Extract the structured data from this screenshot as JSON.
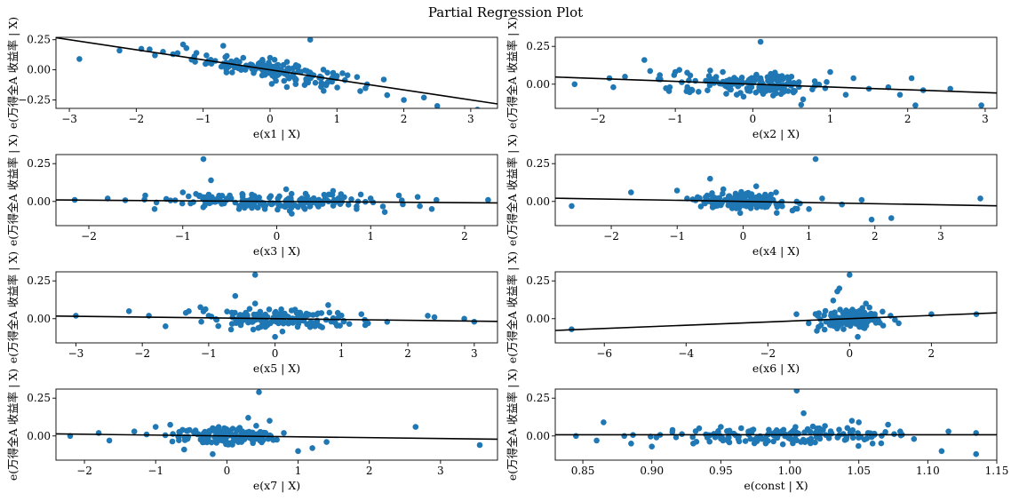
{
  "title": "Partial Regression Plot",
  "chart_data": [
    {
      "type": "scatter",
      "xlabel": "e(x1 | X)",
      "ylabel": "e(万得全A 收益率 | X)",
      "xlim": [
        -3.2,
        3.4
      ],
      "ylim": [
        -0.32,
        0.27
      ],
      "xticks": [
        -3,
        -2,
        -1,
        0,
        1,
        2,
        3
      ],
      "xtick_labels": [
        "−3",
        "−2",
        "−1",
        "0",
        "1",
        "2",
        "3"
      ],
      "yticks": [
        -0.25,
        0,
        0.25
      ],
      "ytick_labels": [
        "−0.25",
        "0.00",
        "0.25"
      ],
      "line": {
        "slope": -0.0833,
        "intercept": 0
      },
      "points": [
        [
          -2.85,
          0.09
        ],
        [
          -2.25,
          0.16
        ],
        [
          -1.8,
          0.17
        ],
        [
          -1.72,
          0.12
        ],
        [
          -1.6,
          0.15
        ],
        [
          -1.45,
          0.13
        ],
        [
          -1.3,
          0.21
        ],
        [
          -1.25,
          0.18
        ],
        [
          -1.1,
          0.14
        ],
        [
          -0.95,
          0.12
        ],
        [
          -0.7,
          0.2
        ],
        [
          -0.6,
          0.05
        ],
        [
          -0.5,
          0.08
        ],
        [
          -0.4,
          0.1
        ],
        [
          -0.3,
          0.03
        ],
        [
          0,
          0.1
        ],
        [
          0.2,
          0.04
        ],
        [
          0.35,
          -0.03
        ],
        [
          0.6,
          0.25
        ],
        [
          0.55,
          -0.08
        ],
        [
          0.8,
          -0.12
        ],
        [
          1,
          -0.05
        ],
        [
          1.3,
          -0.06
        ],
        [
          1.45,
          -0.12
        ],
        [
          1.7,
          -0.08
        ],
        [
          1.75,
          -0.21
        ],
        [
          2,
          -0.25
        ],
        [
          2.3,
          -0.23
        ],
        [
          2.5,
          -0.3
        ],
        [
          3.1,
          -0.33
        ]
      ],
      "n_cloud": 160,
      "cloud_center": [
        0,
        0
      ],
      "cloud_spread": [
        0.55,
        0.04
      ]
    },
    {
      "type": "scatter",
      "xlabel": "e(x2 | X)",
      "ylabel": "e(万得全A 收益率 | X)",
      "xlim": [
        -2.55,
        3.15
      ],
      "ylim": [
        -0.16,
        0.31
      ],
      "xticks": [
        -2,
        -1,
        0,
        1,
        2,
        3
      ],
      "xtick_labels": [
        "−2",
        "−1",
        "0",
        "1",
        "2",
        "3"
      ],
      "yticks": [
        0,
        0.25
      ],
      "ytick_labels": [
        "0.00",
        "0.25"
      ],
      "line": {
        "slope": -0.0185,
        "intercept": 0
      },
      "points": [
        [
          -2.3,
          0
        ],
        [
          -1.85,
          0.04
        ],
        [
          -1.8,
          -0.02
        ],
        [
          -1.65,
          0.05
        ],
        [
          -1.4,
          0.16
        ],
        [
          -1.2,
          0.06
        ],
        [
          -1,
          0.08
        ],
        [
          -0.7,
          -0.05
        ],
        [
          -0.55,
          0.09
        ],
        [
          -0.3,
          0.03
        ],
        [
          0.1,
          0.28
        ],
        [
          0.3,
          -0.06
        ],
        [
          0.5,
          0.05
        ],
        [
          0.65,
          -0.1
        ],
        [
          0.8,
          0.02
        ],
        [
          1,
          0.08
        ],
        [
          1.2,
          -0.07
        ],
        [
          1.3,
          0.04
        ],
        [
          1.5,
          -0.03
        ],
        [
          1.75,
          -0.02
        ],
        [
          1.9,
          -0.07
        ],
        [
          2.05,
          0.04
        ],
        [
          2.1,
          -0.14
        ],
        [
          2.2,
          -0.04
        ],
        [
          2.55,
          -0.03
        ],
        [
          2.95,
          -0.14
        ]
      ],
      "n_cloud": 150,
      "cloud_center": [
        0,
        0
      ],
      "cloud_spread": [
        0.5,
        0.035
      ]
    },
    {
      "type": "scatter",
      "xlabel": "e(x3 | X)",
      "ylabel": "e(万得全A 收益率 | X)",
      "xlim": [
        -2.35,
        2.35
      ],
      "ylim": [
        -0.16,
        0.31
      ],
      "xticks": [
        -2,
        -1,
        0,
        1,
        2
      ],
      "xtick_labels": [
        "−2",
        "−1",
        "0",
        "1",
        "2"
      ],
      "yticks": [
        0,
        0.25
      ],
      "ytick_labels": [
        "0.00",
        "0.25"
      ],
      "line": {
        "slope": -0.0042,
        "intercept": 0
      },
      "points": [
        [
          -2.15,
          0.01
        ],
        [
          -1.8,
          0.02
        ],
        [
          -1.4,
          0.04
        ],
        [
          -1.3,
          -0.05
        ],
        [
          -1,
          0.06
        ],
        [
          -0.78,
          0.28
        ],
        [
          -0.7,
          0.14
        ],
        [
          -0.5,
          0.04
        ],
        [
          -0.2,
          -0.04
        ],
        [
          0.1,
          0.08
        ],
        [
          0.3,
          -0.05
        ],
        [
          0.6,
          0.07
        ],
        [
          0.85,
          -0.05
        ],
        [
          1,
          0.02
        ],
        [
          1.15,
          -0.07
        ],
        [
          1.3,
          0.04
        ],
        [
          1.5,
          0.03
        ],
        [
          1.65,
          -0.05
        ],
        [
          1.7,
          0.01
        ],
        [
          2.25,
          0.01
        ]
      ],
      "n_cloud": 170,
      "cloud_center": [
        0,
        0
      ],
      "cloud_spread": [
        0.6,
        0.025
      ]
    },
    {
      "type": "scatter",
      "xlabel": "e(x4 | X)",
      "ylabel": "e(万得全A 收益率 | X)",
      "xlim": [
        -2.85,
        3.85
      ],
      "ylim": [
        -0.16,
        0.31
      ],
      "xticks": [
        -2,
        -1,
        0,
        1,
        2,
        3
      ],
      "xtick_labels": [
        "−2",
        "−1",
        "0",
        "1",
        "2",
        "3"
      ],
      "yticks": [
        0,
        0.25
      ],
      "ytick_labels": [
        "0.00",
        "0.25"
      ],
      "line": {
        "slope": -0.0075,
        "intercept": 0
      },
      "points": [
        [
          -2.6,
          -0.03
        ],
        [
          -1.7,
          0.06
        ],
        [
          -0.85,
          0.02
        ],
        [
          -0.5,
          0.15
        ],
        [
          -0.3,
          0.08
        ],
        [
          0.2,
          0.1
        ],
        [
          0.5,
          0.06
        ],
        [
          0.75,
          -0.06
        ],
        [
          1,
          -0.05
        ],
        [
          1.1,
          0.28
        ],
        [
          1.2,
          0.02
        ],
        [
          1.5,
          -0.02
        ],
        [
          1.8,
          0.01
        ],
        [
          1.95,
          -0.12
        ],
        [
          2.25,
          -0.11
        ],
        [
          3.6,
          0.02
        ]
      ],
      "n_cloud": 150,
      "cloud_center": [
        0,
        0
      ],
      "cloud_spread": [
        0.35,
        0.03
      ]
    },
    {
      "type": "scatter",
      "xlabel": "e(x5 | X)",
      "ylabel": "e(万得全A 收益率 | X)",
      "xlim": [
        -3.3,
        3.35
      ],
      "ylim": [
        -0.16,
        0.31
      ],
      "xticks": [
        -3,
        -2,
        -1,
        0,
        1,
        2,
        3
      ],
      "xtick_labels": [
        "−3",
        "−2",
        "−1",
        "0",
        "1",
        "2",
        "3"
      ],
      "yticks": [
        0,
        0.25
      ],
      "ytick_labels": [
        "0.00",
        "0.25"
      ],
      "line": {
        "slope": -0.0053,
        "intercept": 0
      },
      "points": [
        [
          -3,
          0.02
        ],
        [
          -2.2,
          0.05
        ],
        [
          -1.9,
          0.02
        ],
        [
          -1.65,
          -0.05
        ],
        [
          -1.3,
          0.05
        ],
        [
          -1,
          0.02
        ],
        [
          -0.6,
          0.15
        ],
        [
          -0.3,
          0.1
        ],
        [
          -0.3,
          0.29
        ],
        [
          0,
          -0.12
        ],
        [
          0.3,
          0.06
        ],
        [
          0.6,
          -0.05
        ],
        [
          0.8,
          0.09
        ],
        [
          1.3,
          0.03
        ],
        [
          1.4,
          -0.03
        ],
        [
          2.3,
          0.02
        ],
        [
          2.4,
          0.01
        ],
        [
          2.85,
          0
        ],
        [
          3,
          -0.02
        ]
      ],
      "n_cloud": 160,
      "cloud_center": [
        0,
        0
      ],
      "cloud_spread": [
        0.5,
        0.03
      ]
    },
    {
      "type": "scatter",
      "xlabel": "e(x6 | X)",
      "ylabel": "e(万得全A 收益率 | X)",
      "xlim": [
        -7.2,
        3.6
      ],
      "ylim": [
        -0.16,
        0.31
      ],
      "xticks": [
        -6,
        -4,
        -2,
        0,
        2
      ],
      "xtick_labels": [
        "−6",
        "−4",
        "−2",
        "0",
        "2"
      ],
      "yticks": [
        0,
        0.25
      ],
      "ytick_labels": [
        "0.00",
        "0.25"
      ],
      "line": {
        "slope": 0.0108,
        "intercept": 0
      },
      "points": [
        [
          -6.8,
          -0.07
        ],
        [
          -1.3,
          0.03
        ],
        [
          -1,
          -0.03
        ],
        [
          -0.8,
          -0.08
        ],
        [
          -0.4,
          0.12
        ],
        [
          -0.3,
          0.18
        ],
        [
          -0.25,
          0.2
        ],
        [
          0,
          0.29
        ],
        [
          0.2,
          -0.12
        ],
        [
          0.4,
          0.1
        ],
        [
          1,
          0.02
        ],
        [
          1.2,
          -0.03
        ],
        [
          2,
          0.03
        ],
        [
          3.1,
          0.03
        ]
      ],
      "n_cloud": 150,
      "cloud_center": [
        0,
        0
      ],
      "cloud_spread": [
        0.35,
        0.035
      ]
    },
    {
      "type": "scatter",
      "xlabel": "e(x7 | X)",
      "ylabel": "e(万得全A 收益率 | X)",
      "xlim": [
        -2.4,
        3.8
      ],
      "ylim": [
        -0.16,
        0.31
      ],
      "xticks": [
        -2,
        -1,
        0,
        1,
        2,
        3
      ],
      "xtick_labels": [
        "−2",
        "−1",
        "0",
        "1",
        "2",
        "3"
      ],
      "yticks": [
        0,
        0.25
      ],
      "ytick_labels": [
        "0.00",
        "0.25"
      ],
      "line": {
        "slope": -0.0056,
        "intercept": 0
      },
      "points": [
        [
          -2.2,
          0
        ],
        [
          -1.8,
          0.02
        ],
        [
          -1.65,
          -0.03
        ],
        [
          -1.3,
          0.03
        ],
        [
          -1,
          0.06
        ],
        [
          -0.6,
          -0.09
        ],
        [
          -0.2,
          -0.12
        ],
        [
          0.3,
          0.12
        ],
        [
          0.45,
          0.29
        ],
        [
          0.6,
          0.1
        ],
        [
          0.8,
          0.02
        ],
        [
          1,
          -0.1
        ],
        [
          1.2,
          -0.08
        ],
        [
          1.4,
          -0.04
        ],
        [
          2.65,
          0.06
        ],
        [
          3.55,
          -0.06
        ]
      ],
      "n_cloud": 150,
      "cloud_center": [
        0,
        0
      ],
      "cloud_spread": [
        0.4,
        0.03
      ]
    },
    {
      "type": "scatter",
      "xlabel": "e(const | X)",
      "ylabel": "e(万得全A 收益率 | X)",
      "xlim": [
        0.83,
        1.15
      ],
      "ylim": [
        -0.16,
        0.31
      ],
      "xticks": [
        0.85,
        0.9,
        0.95,
        1.0,
        1.05,
        1.1,
        1.15
      ],
      "xtick_labels": [
        "0.85",
        "0.90",
        "0.95",
        "1.00",
        "1.05",
        "1.10",
        "1.15"
      ],
      "yticks": [
        0,
        0.25
      ],
      "ytick_labels": [
        "0.00",
        "0.25"
      ],
      "line": {
        "slope": 0,
        "intercept": 0.008
      },
      "points": [
        [
          0.845,
          0
        ],
        [
          0.86,
          -0.03
        ],
        [
          0.865,
          0.09
        ],
        [
          0.88,
          0
        ],
        [
          0.885,
          -0.05
        ],
        [
          0.9,
          -0.07
        ],
        [
          0.915,
          0.04
        ],
        [
          0.93,
          -0.05
        ],
        [
          0.95,
          0.06
        ],
        [
          0.98,
          -0.02
        ],
        [
          1.005,
          0.3
        ],
        [
          1.01,
          0.15
        ],
        [
          1.02,
          0.04
        ],
        [
          1.045,
          0.1
        ],
        [
          1.05,
          0.09
        ],
        [
          1.06,
          -0.05
        ],
        [
          1.08,
          0.03
        ],
        [
          1.09,
          -0.02
        ],
        [
          1.11,
          -0.1
        ],
        [
          1.115,
          0.03
        ],
        [
          1.135,
          -0.12
        ],
        [
          1.135,
          0.02
        ]
      ],
      "n_cloud": 150,
      "cloud_center": [
        1.0,
        0
      ],
      "cloud_spread": [
        0.045,
        0.03
      ]
    }
  ]
}
